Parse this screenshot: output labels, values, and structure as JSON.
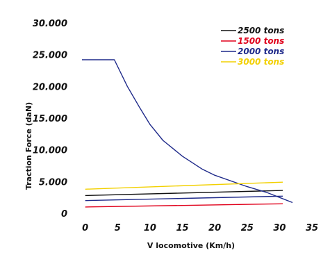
{
  "chart_data": {
    "type": "line",
    "title": "",
    "xlabel": "V locomotive (Km/h)",
    "ylabel": "Traction Force (daN)",
    "xlim": [
      -0.5,
      35
    ],
    "ylim": [
      0,
      30000
    ],
    "x_ticks": [
      "0",
      "5",
      "10",
      "15",
      "20",
      "25",
      "30",
      "35"
    ],
    "y_ticks": [
      "0",
      "5.000",
      "10.000",
      "15.000",
      "20.000",
      "25.000",
      "30.000"
    ],
    "grid": false,
    "legend_position": "top-right",
    "series": [
      {
        "name": "2500 tons",
        "color": "#111111",
        "x": [
          0,
          30.5
        ],
        "y": [
          2800,
          3600
        ]
      },
      {
        "name": "1500 tons",
        "color": "#e0001b",
        "x": [
          0,
          30.5
        ],
        "y": [
          1000,
          1500
        ]
      },
      {
        "name": "2000 tons",
        "color": "#1f2a8a",
        "x": [
          -0.5,
          4.5,
          6.5,
          8.5,
          10,
          12,
          15,
          18,
          20,
          25,
          28,
          30,
          32
        ],
        "y": [
          24200,
          24200,
          20000,
          16500,
          14000,
          11500,
          9000,
          7000,
          6000,
          4200,
          3300,
          2500,
          1700
        ]
      },
      {
        "name": "3000 tons",
        "color": "#f2d000",
        "x": [
          0,
          30.5
        ],
        "y": [
          3800,
          4900
        ]
      },
      {
        "name": "",
        "color": "#1f2a8a",
        "x": [
          0,
          30.5
        ],
        "y": [
          2000,
          2700
        ]
      }
    ]
  }
}
